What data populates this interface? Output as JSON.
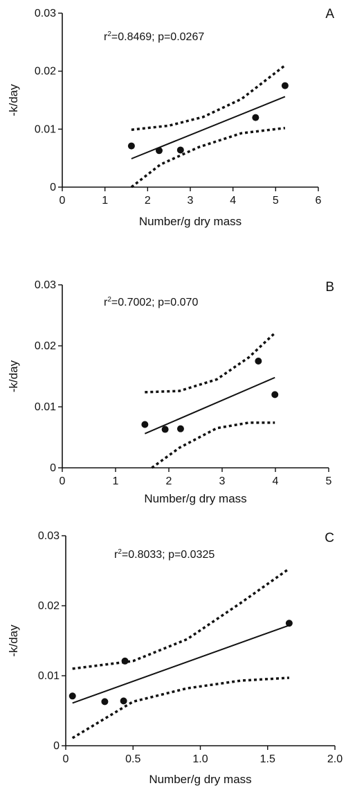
{
  "chart_data": [
    {
      "type": "scatter",
      "panel_label": "A",
      "annotation_prefix": "r",
      "annotation_exp": "2",
      "annotation_rest": "=0.8469; p=0.0267",
      "xlabel": "Number/g dry mass",
      "ylabel": "-k/day",
      "xlim": [
        0,
        6
      ],
      "ylim": [
        0,
        0.03
      ],
      "x_ticks": [
        0,
        1,
        2,
        3,
        4,
        5,
        6
      ],
      "x_tick_labels": [
        "0",
        "1",
        "2",
        "3",
        "4",
        "5",
        "6"
      ],
      "y_ticks": [
        0,
        0.01,
        0.02,
        0.03
      ],
      "y_tick_labels": [
        "0",
        "0.01",
        "0.02",
        "0.03"
      ],
      "points": [
        {
          "x": 1.62,
          "y": 0.0071
        },
        {
          "x": 2.27,
          "y": 0.0063
        },
        {
          "x": 2.77,
          "y": 0.0064
        },
        {
          "x": 4.53,
          "y": 0.012
        },
        {
          "x": 5.22,
          "y": 0.0175
        }
      ],
      "fit_line": [
        [
          1.62,
          0.0049
        ],
        [
          5.22,
          0.0156
        ]
      ],
      "ci_upper": [
        [
          1.62,
          0.0099
        ],
        [
          2.5,
          0.0106
        ],
        [
          3.3,
          0.0121
        ],
        [
          4.2,
          0.0152
        ],
        [
          5.22,
          0.021
        ]
      ],
      "ci_lower": [
        [
          1.62,
          0.0
        ],
        [
          2.3,
          0.0039
        ],
        [
          3.2,
          0.0069
        ],
        [
          4.2,
          0.0093
        ],
        [
          5.22,
          0.0102
        ]
      ]
    },
    {
      "type": "scatter",
      "panel_label": "B",
      "annotation_prefix": "r",
      "annotation_exp": "2",
      "annotation_rest": "=0.7002; p=0.070",
      "xlabel": "Number/g dry mass",
      "ylabel": "-k/day",
      "xlim": [
        0,
        5
      ],
      "ylim": [
        0,
        0.03
      ],
      "x_ticks": [
        0,
        1,
        2,
        3,
        4,
        5
      ],
      "x_tick_labels": [
        "0",
        "1",
        "2",
        "3",
        "4",
        "5"
      ],
      "y_ticks": [
        0,
        0.01,
        0.02,
        0.03
      ],
      "y_tick_labels": [
        "0",
        "0.01",
        "0.02",
        "0.03"
      ],
      "points": [
        {
          "x": 1.55,
          "y": 0.0071
        },
        {
          "x": 1.93,
          "y": 0.0063
        },
        {
          "x": 2.22,
          "y": 0.0064
        },
        {
          "x": 3.68,
          "y": 0.0175
        },
        {
          "x": 3.99,
          "y": 0.012
        }
      ],
      "fit_line": [
        [
          1.55,
          0.0056
        ],
        [
          3.99,
          0.0148
        ]
      ],
      "ci_upper": [
        [
          1.55,
          0.0124
        ],
        [
          2.2,
          0.0126
        ],
        [
          2.9,
          0.0145
        ],
        [
          3.5,
          0.0181
        ],
        [
          3.99,
          0.0221
        ]
      ],
      "ci_lower": [
        [
          1.68,
          0.0
        ],
        [
          2.2,
          0.0033
        ],
        [
          2.9,
          0.0065
        ],
        [
          3.5,
          0.0074
        ],
        [
          3.99,
          0.0074
        ]
      ]
    },
    {
      "type": "scatter",
      "panel_label": "C",
      "annotation_prefix": "r",
      "annotation_exp": "2",
      "annotation_rest": "=0.8033; p=0.0325",
      "xlabel": "Number/g dry mass",
      "ylabel": "-k/day",
      "xlim": [
        0,
        2
      ],
      "ylim": [
        0,
        0.03
      ],
      "x_ticks": [
        0,
        0.5,
        1.0,
        1.5,
        2.0
      ],
      "x_tick_labels": [
        "0",
        "0.5",
        "1.0",
        "1.5",
        "2.0"
      ],
      "y_ticks": [
        0,
        0.01,
        0.02,
        0.03
      ],
      "y_tick_labels": [
        "0",
        "0.01",
        "0.02",
        "0.03"
      ],
      "points": [
        {
          "x": 0.05,
          "y": 0.0071
        },
        {
          "x": 0.29,
          "y": 0.0063
        },
        {
          "x": 0.43,
          "y": 0.0064
        },
        {
          "x": 0.44,
          "y": 0.0121
        },
        {
          "x": 1.66,
          "y": 0.0175
        }
      ],
      "fit_line": [
        [
          0.05,
          0.0061
        ],
        [
          1.66,
          0.0172
        ]
      ],
      "ci_upper": [
        [
          0.05,
          0.011
        ],
        [
          0.5,
          0.0121
        ],
        [
          0.9,
          0.0152
        ],
        [
          1.3,
          0.0204
        ],
        [
          1.66,
          0.0253
        ]
      ],
      "ci_lower": [
        [
          0.05,
          0.0011
        ],
        [
          0.5,
          0.0063
        ],
        [
          0.9,
          0.0082
        ],
        [
          1.3,
          0.0093
        ],
        [
          1.66,
          0.0097
        ]
      ]
    }
  ]
}
